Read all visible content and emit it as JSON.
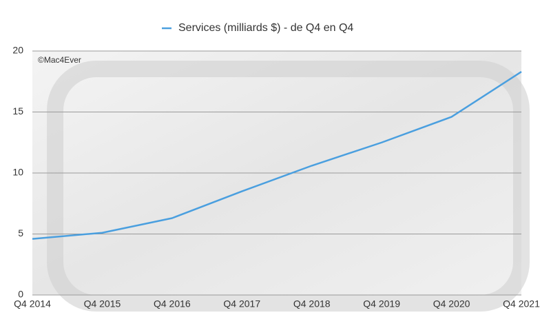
{
  "chart_data": {
    "type": "line",
    "annotation": "©Mac4Ever",
    "categories": [
      "Q4 2014",
      "Q4 2015",
      "Q4 2016",
      "Q4 2017",
      "Q4 2018",
      "Q4 2019",
      "Q4 2020",
      "Q4 2021"
    ],
    "series": [
      {
        "name": "Services (milliards $) - de Q4 en Q4",
        "color": "#4a9fdf",
        "values": [
          4.6,
          5.1,
          6.3,
          8.5,
          10.6,
          12.5,
          14.6,
          18.3
        ]
      }
    ],
    "ylim": [
      0,
      20
    ],
    "yticks": [
      0,
      5,
      10,
      15,
      20
    ],
    "grid": true
  }
}
